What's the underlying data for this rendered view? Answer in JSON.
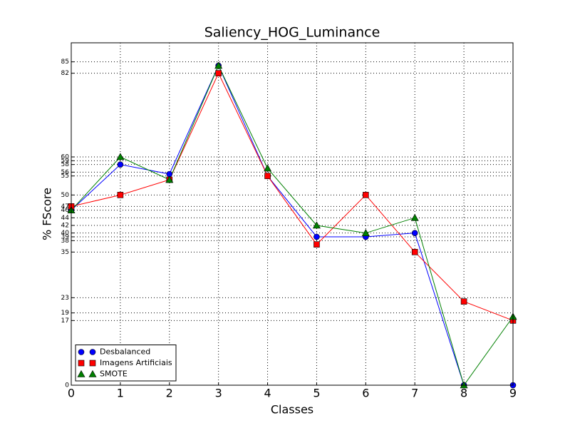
{
  "chart_data": {
    "type": "line",
    "title": "Saliency_HOG_Luminance",
    "x_label": "Classes",
    "y_label": "% FScore",
    "x": [
      0,
      1,
      2,
      3,
      4,
      5,
      6,
      7,
      8,
      9
    ],
    "xlim": [
      0,
      9
    ],
    "xticks": [
      0,
      1,
      2,
      3,
      4,
      5,
      6,
      7,
      8,
      9
    ],
    "ylim": [
      0,
      90
    ],
    "yticks": [
      0,
      17,
      19,
      23,
      35,
      38,
      39,
      40,
      42,
      44,
      46,
      47,
      50,
      55,
      56,
      58,
      59,
      60,
      82,
      85
    ],
    "grid": true,
    "legend_position": "lower-left",
    "series": [
      {
        "name": "Desbalanced",
        "color": "#0000ff",
        "marker": "circle",
        "values": [
          46,
          58,
          55.5,
          84,
          55,
          39,
          39,
          40,
          0,
          0
        ]
      },
      {
        "name": "Imagens Artificiais",
        "color": "#ff0000",
        "marker": "square",
        "values": [
          47,
          50,
          54,
          82,
          55,
          37,
          50,
          35,
          22,
          17
        ]
      },
      {
        "name": "SMOTE",
        "color": "#008000",
        "marker": "triangle",
        "values": [
          46,
          60,
          54,
          84,
          57,
          42,
          40,
          44,
          0,
          18
        ]
      }
    ]
  }
}
